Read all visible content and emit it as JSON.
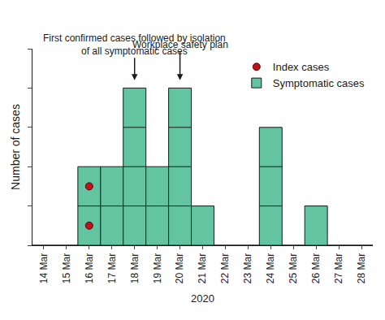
{
  "chart_data": {
    "type": "bar",
    "categories": [
      "14 Mar",
      "15 Mar",
      "16 Mar",
      "17 Mar",
      "18 Mar",
      "19 Mar",
      "20 Mar",
      "21 Mar",
      "22 Mar",
      "23 Mar",
      "24 Mar",
      "25 Mar",
      "26 Mar",
      "27 Mar",
      "28 Mar"
    ],
    "series": [
      {
        "name": "Symptomatic cases",
        "type": "bar",
        "color": "#63c4a2",
        "values": [
          0,
          0,
          2,
          2,
          4,
          2,
          4,
          1,
          0,
          0,
          3,
          0,
          1,
          0,
          0
        ]
      },
      {
        "name": "Index cases",
        "type": "scatter",
        "marker": "circle",
        "color": "#c0121c",
        "values": [
          0,
          0,
          2,
          0,
          0,
          0,
          0,
          0,
          0,
          0,
          0,
          0,
          0,
          0,
          0
        ]
      }
    ],
    "x_label": "2020",
    "y_label": "Number of cases",
    "ylim": [
      0,
      5
    ],
    "yticks": [
      0,
      1,
      2,
      3,
      4,
      5
    ],
    "tick_labels": "x",
    "grid": false,
    "legend": "top right",
    "annotations": [
      {
        "category": "18 Mar",
        "lines": [
          "First confirmed cases followed by isolation",
          "of all symptomatic cases"
        ]
      },
      {
        "category": "20 Mar",
        "lines": [
          "Workplace safety plan"
        ]
      }
    ]
  }
}
